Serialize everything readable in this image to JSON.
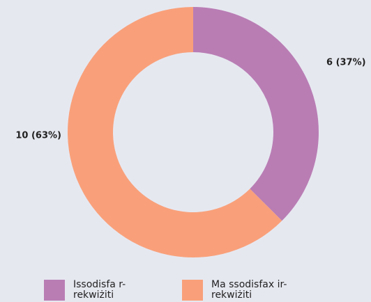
{
  "chart_data": {
    "type": "donut",
    "categories": [
      "Issodisfa r-rekwiżiti",
      "Ma ssodisfax ir-rekwiżiti"
    ],
    "values": [
      6,
      10
    ],
    "value_labels": [
      "6 (37%)",
      "10 (63%)"
    ],
    "colors": [
      "#b97db4",
      "#f9a07a"
    ]
  }
}
